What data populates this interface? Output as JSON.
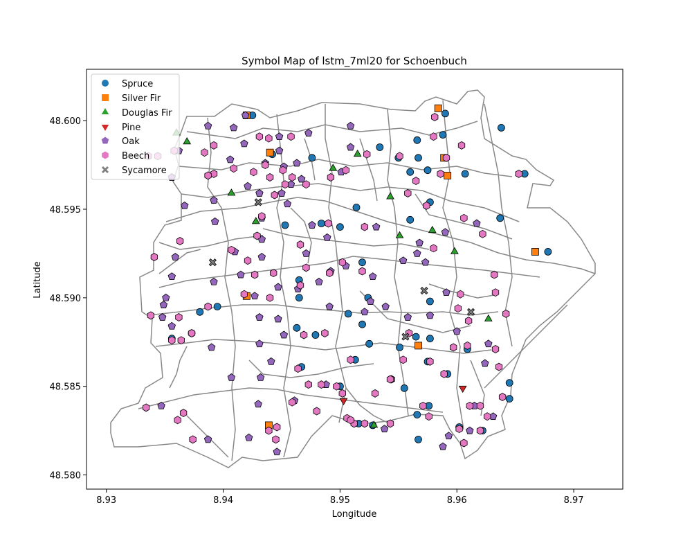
{
  "chart_data": {
    "type": "scatter",
    "title": "Symbol Map of lstm_7ml20 for Schoenbuch",
    "xlabel": "Longitude",
    "ylabel": "Latitude",
    "xlim": [
      8.9283,
      8.9742
    ],
    "ylim": [
      48.5792,
      48.6029
    ],
    "xticks": [
      "8.93",
      "8.94",
      "8.95",
      "8.96",
      "8.97"
    ],
    "yticks": [
      "48.580",
      "48.585",
      "48.590",
      "48.595",
      "48.600"
    ],
    "legend_position": "top-left",
    "grid": false,
    "series": [
      {
        "name": "Spruce",
        "marker": "circle",
        "color": "#1f77b4",
        "points": [
          [
            8.9425,
            48.6003
          ],
          [
            8.959,
            48.6004
          ],
          [
            8.9638,
            48.5996
          ],
          [
            8.9588,
            48.5992
          ],
          [
            8.9566,
            48.5989
          ],
          [
            8.9534,
            48.5985
          ],
          [
            8.9567,
            48.5979
          ],
          [
            8.9442,
            48.5981
          ],
          [
            8.9476,
            48.5979
          ],
          [
            8.955,
            48.5979
          ],
          [
            8.956,
            48.5971
          ],
          [
            8.9575,
            48.5972
          ],
          [
            8.9607,
            48.597
          ],
          [
            8.9658,
            48.597
          ],
          [
            8.9577,
            48.5954
          ],
          [
            8.9514,
            48.5951
          ],
          [
            8.956,
            48.5944
          ],
          [
            8.9637,
            48.5945
          ],
          [
            8.9453,
            48.5941
          ],
          [
            8.9484,
            48.5942
          ],
          [
            8.95,
            48.594
          ],
          [
            8.9678,
            48.5926
          ],
          [
            8.9519,
            48.592
          ],
          [
            8.9465,
            48.591
          ],
          [
            8.9524,
            48.59
          ],
          [
            8.9465,
            48.59
          ],
          [
            8.9577,
            48.5898
          ],
          [
            8.9395,
            48.5895
          ],
          [
            8.938,
            48.5892
          ],
          [
            8.9507,
            48.5891
          ],
          [
            8.9519,
            48.5885
          ],
          [
            8.9463,
            48.5883
          ],
          [
            8.9479,
            48.5879
          ],
          [
            8.9565,
            48.5878
          ],
          [
            8.9577,
            48.5877
          ],
          [
            8.9373,
            48.588
          ],
          [
            8.9356,
            48.5877
          ],
          [
            8.9525,
            48.5874
          ],
          [
            8.9551,
            48.5872
          ],
          [
            8.9609,
            48.5871
          ],
          [
            8.9513,
            48.5865
          ],
          [
            8.9575,
            48.5864
          ],
          [
            8.9467,
            48.5861
          ],
          [
            8.9592,
            48.5857
          ],
          [
            8.9645,
            48.5852
          ],
          [
            8.9555,
            48.5849
          ],
          [
            8.95,
            48.585
          ],
          [
            8.9645,
            48.5843
          ],
          [
            8.9576,
            48.5839
          ],
          [
            8.9566,
            48.5834
          ],
          [
            8.9602,
            48.5827
          ],
          [
            8.9622,
            48.5825
          ],
          [
            8.9567,
            48.582
          ],
          [
            8.9528,
            48.5828
          ],
          [
            8.9516,
            48.5829
          ]
        ]
      },
      {
        "name": "Silver Fir",
        "marker": "square",
        "color": "#ff7f0e",
        "points": [
          [
            8.942,
            48.6003
          ],
          [
            8.9584,
            48.6007
          ],
          [
            8.944,
            48.5982
          ],
          [
            8.9589,
            48.5979
          ],
          [
            8.9592,
            48.5969
          ],
          [
            8.9667,
            48.5926
          ],
          [
            8.942,
            48.5901
          ],
          [
            8.9567,
            48.5873
          ],
          [
            8.9439,
            48.5828
          ]
        ]
      },
      {
        "name": "Douglas Fir",
        "marker": "triangle-up",
        "color": "#2ca02c",
        "points": [
          [
            8.936,
            48.5993
          ],
          [
            8.9369,
            48.5988
          ],
          [
            8.9515,
            48.5981
          ],
          [
            8.9494,
            48.5973
          ],
          [
            8.9407,
            48.5959
          ],
          [
            8.9543,
            48.5957
          ],
          [
            8.9428,
            48.5943
          ],
          [
            8.9551,
            48.5935
          ],
          [
            8.9579,
            48.5938
          ],
          [
            8.9598,
            48.5926
          ],
          [
            8.9627,
            48.5888
          ],
          [
            8.9529,
            48.5828
          ]
        ]
      },
      {
        "name": "Pine",
        "marker": "triangle-down",
        "color": "#d62728",
        "points": [
          [
            8.9503,
            48.5842
          ],
          [
            8.9605,
            48.5849
          ]
        ]
      },
      {
        "name": "Oak",
        "marker": "pentagon",
        "color": "#9467bd",
        "points": [
          [
            8.9387,
            48.5997
          ],
          [
            8.9409,
            48.5996
          ],
          [
            8.9419,
            48.6003
          ],
          [
            8.9448,
            48.5991
          ],
          [
            8.9473,
            48.5993
          ],
          [
            8.9509,
            48.5997
          ],
          [
            8.9418,
            48.5987
          ],
          [
            8.9362,
            48.5983
          ],
          [
            8.9406,
            48.5978
          ],
          [
            8.9448,
            48.5983
          ],
          [
            8.9436,
            48.5976
          ],
          [
            8.9452,
            48.5974
          ],
          [
            8.9463,
            48.5976
          ],
          [
            8.9509,
            48.5985
          ],
          [
            8.9501,
            48.5971
          ],
          [
            8.9356,
            48.5968
          ],
          [
            8.9421,
            48.5963
          ],
          [
            8.9467,
            48.5967
          ],
          [
            8.9458,
            48.5964
          ],
          [
            8.9431,
            48.5959
          ],
          [
            8.945,
            48.5959
          ],
          [
            8.9392,
            48.5955
          ],
          [
            8.9367,
            48.5952
          ],
          [
            8.9455,
            48.5953
          ],
          [
            8.9433,
            48.5945
          ],
          [
            8.9393,
            48.5943
          ],
          [
            8.9476,
            48.5941
          ],
          [
            8.9433,
            48.5933
          ],
          [
            8.9471,
            48.5925
          ],
          [
            8.9489,
            48.5934
          ],
          [
            8.9531,
            48.594
          ],
          [
            8.9568,
            48.5931
          ],
          [
            8.9617,
            48.5942
          ],
          [
            8.959,
            48.5937
          ],
          [
            8.9566,
            48.5925
          ],
          [
            8.9505,
            48.5918
          ],
          [
            8.9528,
            48.5912
          ],
          [
            8.9554,
            48.5921
          ],
          [
            8.9573,
            48.592
          ],
          [
            8.9359,
            48.5923
          ],
          [
            8.941,
            48.5926
          ],
          [
            8.9433,
            48.5923
          ],
          [
            8.9492,
            48.5915
          ],
          [
            8.9415,
            48.5913
          ],
          [
            8.9482,
            48.5909
          ],
          [
            8.9464,
            48.5905
          ],
          [
            8.9447,
            48.5906
          ],
          [
            8.9356,
            48.5912
          ],
          [
            8.9351,
            48.59
          ],
          [
            8.9392,
            48.5909
          ],
          [
            8.9349,
            48.5896
          ],
          [
            8.9427,
            48.5901
          ],
          [
            8.9491,
            48.5895
          ],
          [
            8.9526,
            48.5898
          ],
          [
            8.9539,
            48.5895
          ],
          [
            8.9558,
            48.5889
          ],
          [
            8.9591,
            48.5903
          ],
          [
            8.9577,
            48.589
          ],
          [
            8.9348,
            48.5889
          ],
          [
            8.9431,
            48.5889
          ],
          [
            8.9447,
            48.5888
          ],
          [
            8.9521,
            48.5892
          ],
          [
            8.9356,
            48.5884
          ],
          [
            8.939,
            48.5872
          ],
          [
            8.9431,
            48.5874
          ],
          [
            8.9452,
            48.5879
          ],
          [
            8.96,
            48.5881
          ],
          [
            8.9627,
            48.5874
          ],
          [
            8.9407,
            48.5855
          ],
          [
            8.9432,
            48.5855
          ],
          [
            8.9441,
            48.5864
          ],
          [
            8.9488,
            48.5851
          ],
          [
            8.9624,
            48.5863
          ],
          [
            8.943,
            48.584
          ],
          [
            8.9347,
            48.5839
          ],
          [
            8.9461,
            48.5842
          ],
          [
            8.9538,
            48.5826
          ],
          [
            8.9387,
            48.582
          ],
          [
            8.9422,
            48.5821
          ],
          [
            8.9446,
            48.5813
          ],
          [
            8.9593,
            48.5822
          ],
          [
            8.9588,
            48.5816
          ],
          [
            8.9611,
            48.5825
          ],
          [
            8.9631,
            48.5833
          ],
          [
            8.9615,
            48.5839
          ]
        ]
      },
      {
        "name": "Beech",
        "marker": "hexagon",
        "color": "#e377c2",
        "points": [
          [
            8.9336,
            48.598
          ],
          [
            8.9344,
            48.598
          ],
          [
            8.9358,
            48.5983
          ],
          [
            8.9384,
            48.5982
          ],
          [
            8.9392,
            48.5986
          ],
          [
            8.9431,
            48.5991
          ],
          [
            8.9439,
            48.599
          ],
          [
            8.9458,
            48.5991
          ],
          [
            8.9581,
            48.6002
          ],
          [
            8.958,
            48.5991
          ],
          [
            8.9604,
            48.5986
          ],
          [
            8.9591,
            48.5979
          ],
          [
            8.9551,
            48.598
          ],
          [
            8.9523,
            48.5981
          ],
          [
            8.9505,
            48.5972
          ],
          [
            8.9492,
            48.5968
          ],
          [
            8.9436,
            48.5975
          ],
          [
            8.9426,
            48.5971
          ],
          [
            8.9409,
            48.5973
          ],
          [
            8.9392,
            48.597
          ],
          [
            8.9387,
            48.5969
          ],
          [
            8.9451,
            48.5972
          ],
          [
            8.9459,
            48.5968
          ],
          [
            8.9565,
            48.5966
          ],
          [
            8.9586,
            48.597
          ],
          [
            8.9653,
            48.597
          ],
          [
            8.944,
            48.5968
          ],
          [
            8.9453,
            48.5964
          ],
          [
            8.9471,
            48.5964
          ],
          [
            8.9444,
            48.5958
          ],
          [
            8.9558,
            48.5959
          ],
          [
            8.9574,
            48.5952
          ],
          [
            8.9433,
            48.5946
          ],
          [
            8.949,
            48.5942
          ],
          [
            8.9521,
            48.594
          ],
          [
            8.9606,
            48.5945
          ],
          [
            8.9429,
            48.5935
          ],
          [
            8.9622,
            48.5936
          ],
          [
            8.958,
            48.5928
          ],
          [
            8.9466,
            48.593
          ],
          [
            8.9363,
            48.5932
          ],
          [
            8.9407,
            48.5927
          ],
          [
            8.9471,
            48.5917
          ],
          [
            8.9421,
            48.5921
          ],
          [
            8.9443,
            48.5914
          ],
          [
            8.9427,
            48.5913
          ],
          [
            8.9502,
            48.592
          ],
          [
            8.9491,
            48.5914
          ],
          [
            8.9519,
            48.5915
          ],
          [
            8.9466,
            48.5907
          ],
          [
            8.9341,
            48.5923
          ],
          [
            8.9632,
            48.5913
          ],
          [
            8.9633,
            48.5903
          ],
          [
            8.9603,
            48.5902
          ],
          [
            8.944,
            48.59
          ],
          [
            8.9418,
            48.5902
          ],
          [
            8.9387,
            48.5895
          ],
          [
            8.9601,
            48.5894
          ],
          [
            8.961,
            48.5887
          ],
          [
            8.9642,
            48.5891
          ],
          [
            8.9338,
            48.589
          ],
          [
            8.9362,
            48.5889
          ],
          [
            8.9373,
            48.588
          ],
          [
            8.9356,
            48.5876
          ],
          [
            8.9364,
            48.5876
          ],
          [
            8.9469,
            48.5879
          ],
          [
            8.9487,
            48.588
          ],
          [
            8.9559,
            48.588
          ],
          [
            8.9597,
            48.5872
          ],
          [
            8.9609,
            48.5873
          ],
          [
            8.9633,
            48.5871
          ],
          [
            8.9554,
            48.5865
          ],
          [
            8.9577,
            48.5864
          ],
          [
            8.9509,
            48.5865
          ],
          [
            8.9464,
            48.586
          ],
          [
            8.9544,
            48.5854
          ],
          [
            8.9589,
            48.5857
          ],
          [
            8.9636,
            48.5861
          ],
          [
            8.9473,
            48.5851
          ],
          [
            8.9484,
            48.5851
          ],
          [
            8.9497,
            48.585
          ],
          [
            8.9543,
            48.5854
          ],
          [
            8.953,
            48.5846
          ],
          [
            8.9459,
            48.5841
          ],
          [
            8.9502,
            48.5846
          ],
          [
            8.9639,
            48.5844
          ],
          [
            8.9611,
            48.5839
          ],
          [
            8.9446,
            48.5827
          ],
          [
            8.9334,
            48.5838
          ],
          [
            8.9361,
            48.5831
          ],
          [
            8.9366,
            48.5835
          ],
          [
            8.948,
            48.5836
          ],
          [
            8.9506,
            48.5832
          ],
          [
            8.9512,
            48.5829
          ],
          [
            8.9509,
            48.5831
          ],
          [
            8.9521,
            48.5829
          ],
          [
            8.9543,
            48.5829
          ],
          [
            8.9576,
            48.5833
          ],
          [
            8.9571,
            48.5839
          ],
          [
            8.962,
            48.5839
          ],
          [
            8.9626,
            48.5833
          ],
          [
            8.9602,
            48.5826
          ],
          [
            8.962,
            48.5825
          ],
          [
            8.9374,
            48.582
          ],
          [
            8.9445,
            48.582
          ],
          [
            8.9439,
            48.5825
          ],
          [
            8.9606,
            48.5818
          ]
        ]
      },
      {
        "name": "Sycamore",
        "marker": "x",
        "color": "#7f7f7f",
        "points": [
          [
            8.943,
            48.5954
          ],
          [
            8.9391,
            48.592
          ],
          [
            8.9572,
            48.5904
          ],
          [
            8.9612,
            48.5892
          ],
          [
            8.9556,
            48.5878
          ]
        ]
      }
    ]
  }
}
